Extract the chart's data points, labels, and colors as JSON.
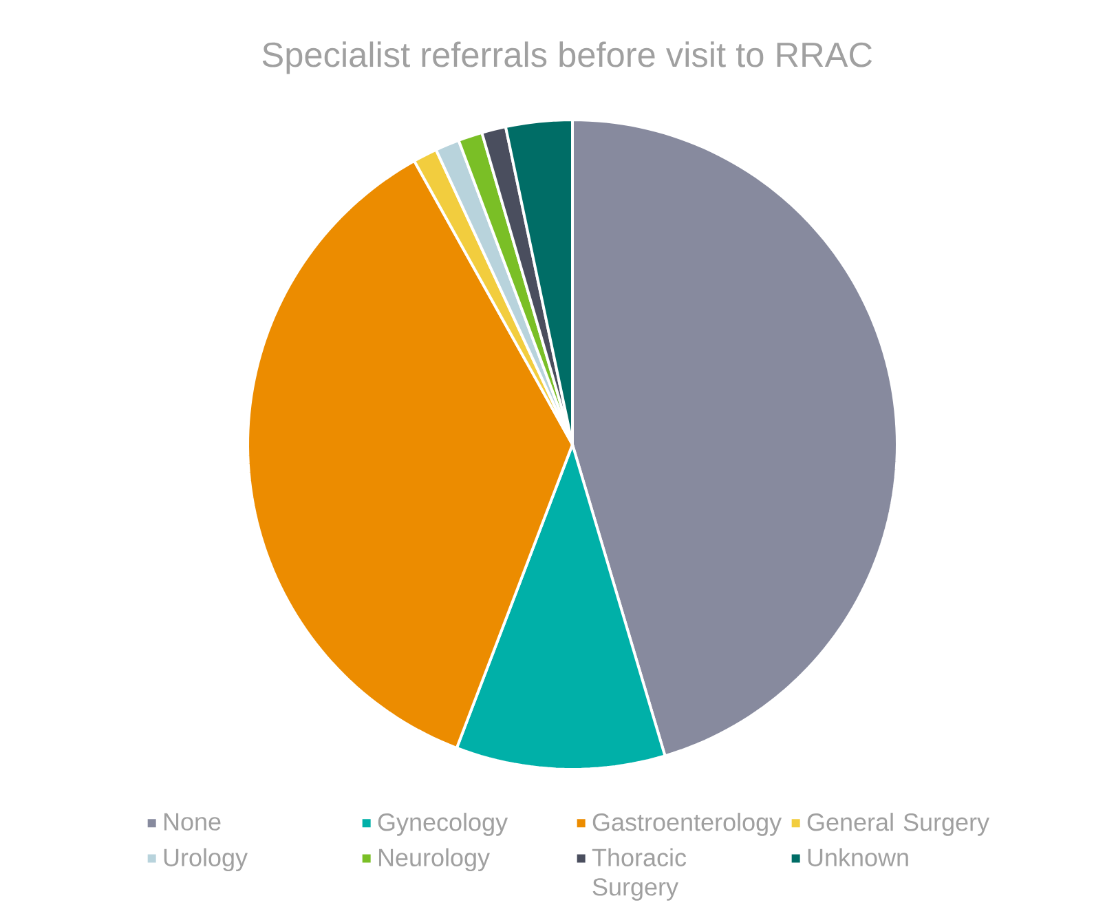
{
  "chart_data": {
    "type": "pie",
    "title": "Specialist referrals before visit to RRAC",
    "categories": [
      "None",
      "Gynecology",
      "Gastroenterology",
      "General Surgery",
      "Urology",
      "Neurology",
      "Thoracic Surgery",
      "Unknown"
    ],
    "values": [
      45.4,
      10.4,
      36.1,
      1.2,
      1.2,
      1.2,
      1.2,
      3.3
    ],
    "colors": [
      "#878a9e",
      "#00b0a8",
      "#ec8c00",
      "#f2cd3e",
      "#b8d3dc",
      "#7abf26",
      "#4a4e5e",
      "#006d66"
    ],
    "legend": "bottom"
  }
}
